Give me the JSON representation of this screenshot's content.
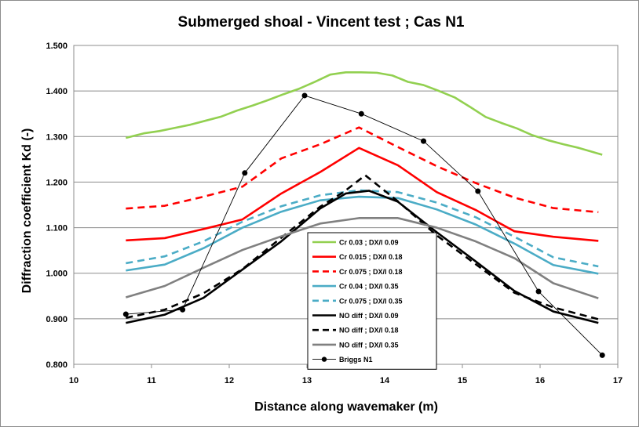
{
  "chart_data": {
    "type": "line",
    "title": "Submerged shoal - Vincent test ; Cas N1",
    "xlabel": "Distance along wavemaker (m)",
    "ylabel": "Diffraction coefficient Kd (-)",
    "xlim": [
      10,
      17
    ],
    "ylim": [
      0.8,
      1.5
    ],
    "x_ticks": [
      "10",
      "11",
      "12",
      "13",
      "14",
      "15",
      "16",
      "17"
    ],
    "y_ticks": [
      "0.800",
      "0.900",
      "1.000",
      "1.100",
      "1.200",
      "1.300",
      "1.400",
      "1.500"
    ],
    "grid": "horizontal",
    "legend_position": "center-bottom",
    "series": [
      {
        "name": "Cr 0.03 ; DX/l 0.09",
        "color": "#92d050",
        "dash": "solid",
        "x": [
          10.67,
          10.9,
          11.1,
          11.3,
          11.5,
          11.7,
          11.9,
          12.1,
          12.3,
          12.5,
          12.7,
          12.9,
          13.1,
          13.3,
          13.5,
          13.7,
          13.9,
          14.1,
          14.3,
          14.5,
          14.7,
          14.9,
          15.1,
          15.3,
          15.5,
          15.7,
          15.9,
          16.1,
          16.3,
          16.5,
          16.7,
          16.8
        ],
        "y": [
          1.297,
          1.307,
          1.312,
          1.319,
          1.326,
          1.335,
          1.344,
          1.357,
          1.368,
          1.38,
          1.393,
          1.405,
          1.42,
          1.436,
          1.441,
          1.441,
          1.44,
          1.434,
          1.42,
          1.413,
          1.4,
          1.386,
          1.365,
          1.343,
          1.33,
          1.318,
          1.303,
          1.292,
          1.283,
          1.275,
          1.265,
          1.26
        ]
      },
      {
        "name": "Cr 0.015 ; DX/l 0.18",
        "color": "#ff0000",
        "dash": "solid",
        "x": [
          10.67,
          11.17,
          11.67,
          12.17,
          12.67,
          13.17,
          13.67,
          14.17,
          14.67,
          15.17,
          15.67,
          16.17,
          16.75
        ],
        "y": [
          1.072,
          1.077,
          1.097,
          1.118,
          1.175,
          1.222,
          1.275,
          1.237,
          1.178,
          1.139,
          1.092,
          1.08,
          1.071
        ]
      },
      {
        "name": "Cr 0.075 ; DX/l 0.18",
        "color": "#ff0000",
        "dash": "dashed",
        "x": [
          10.67,
          11.17,
          11.67,
          12.17,
          12.67,
          13.17,
          13.67,
          14.17,
          14.67,
          15.17,
          15.67,
          16.17,
          16.75
        ],
        "y": [
          1.142,
          1.148,
          1.168,
          1.19,
          1.252,
          1.283,
          1.32,
          1.277,
          1.235,
          1.198,
          1.166,
          1.143,
          1.134
        ]
      },
      {
        "name": "Cr 0.04 ; DX/l 0.35",
        "color": "#4bacc6",
        "dash": "solid",
        "x": [
          10.67,
          11.17,
          11.67,
          12.17,
          12.67,
          13.17,
          13.67,
          14.17,
          14.67,
          15.17,
          15.67,
          16.17,
          16.75
        ],
        "y": [
          1.006,
          1.019,
          1.055,
          1.1,
          1.135,
          1.16,
          1.168,
          1.165,
          1.14,
          1.107,
          1.065,
          1.018,
          0.999
        ]
      },
      {
        "name": "Cr 0.075 ; DX/l 0.35",
        "color": "#4bacc6",
        "dash": "dashed",
        "x": [
          10.67,
          11.17,
          11.67,
          12.17,
          12.67,
          13.17,
          13.67,
          14.17,
          14.67,
          15.17,
          15.67,
          16.17,
          16.75
        ],
        "y": [
          1.022,
          1.037,
          1.07,
          1.113,
          1.147,
          1.171,
          1.182,
          1.178,
          1.155,
          1.123,
          1.08,
          1.035,
          1.015
        ]
      },
      {
        "name": "NO diff ; DX/l 0.09",
        "color": "#000000",
        "dash": "solid",
        "x": [
          10.67,
          11.17,
          11.67,
          12.17,
          12.67,
          13.17,
          13.5,
          13.8,
          14.17,
          14.67,
          15.17,
          15.67,
          16.17,
          16.75
        ],
        "y": [
          0.891,
          0.909,
          0.946,
          1.008,
          1.07,
          1.142,
          1.175,
          1.181,
          1.157,
          1.09,
          1.026,
          0.961,
          0.916,
          0.891
        ]
      },
      {
        "name": "NO diff ; DX/l 0.18",
        "color": "#000000",
        "dash": "dashed",
        "x": [
          10.67,
          11.17,
          11.67,
          12.17,
          12.67,
          13.17,
          13.47,
          13.75,
          14.17,
          14.67,
          15.17,
          15.67,
          16.17,
          16.75
        ],
        "y": [
          0.902,
          0.92,
          0.956,
          1.009,
          1.078,
          1.146,
          1.178,
          1.215,
          1.158,
          1.083,
          1.02,
          0.957,
          0.925,
          0.899
        ]
      },
      {
        "name": "NO diff ; DX/l 0.35",
        "color": "#808080",
        "dash": "solid",
        "x": [
          10.67,
          11.17,
          11.67,
          12.17,
          12.67,
          13.17,
          13.67,
          14.17,
          14.67,
          15.17,
          15.67,
          16.17,
          16.75
        ],
        "y": [
          0.947,
          0.972,
          1.012,
          1.051,
          1.081,
          1.109,
          1.121,
          1.121,
          1.1,
          1.07,
          1.033,
          0.978,
          0.945
        ]
      },
      {
        "name": "Briggs N1",
        "color": "#000000",
        "dash": "marker",
        "x": [
          10.67,
          11.4,
          12.2,
          12.97,
          13.7,
          14.5,
          15.2,
          15.98,
          16.8
        ],
        "y": [
          0.91,
          0.92,
          1.22,
          1.39,
          1.35,
          1.29,
          1.18,
          0.96,
          0.82
        ]
      }
    ]
  }
}
